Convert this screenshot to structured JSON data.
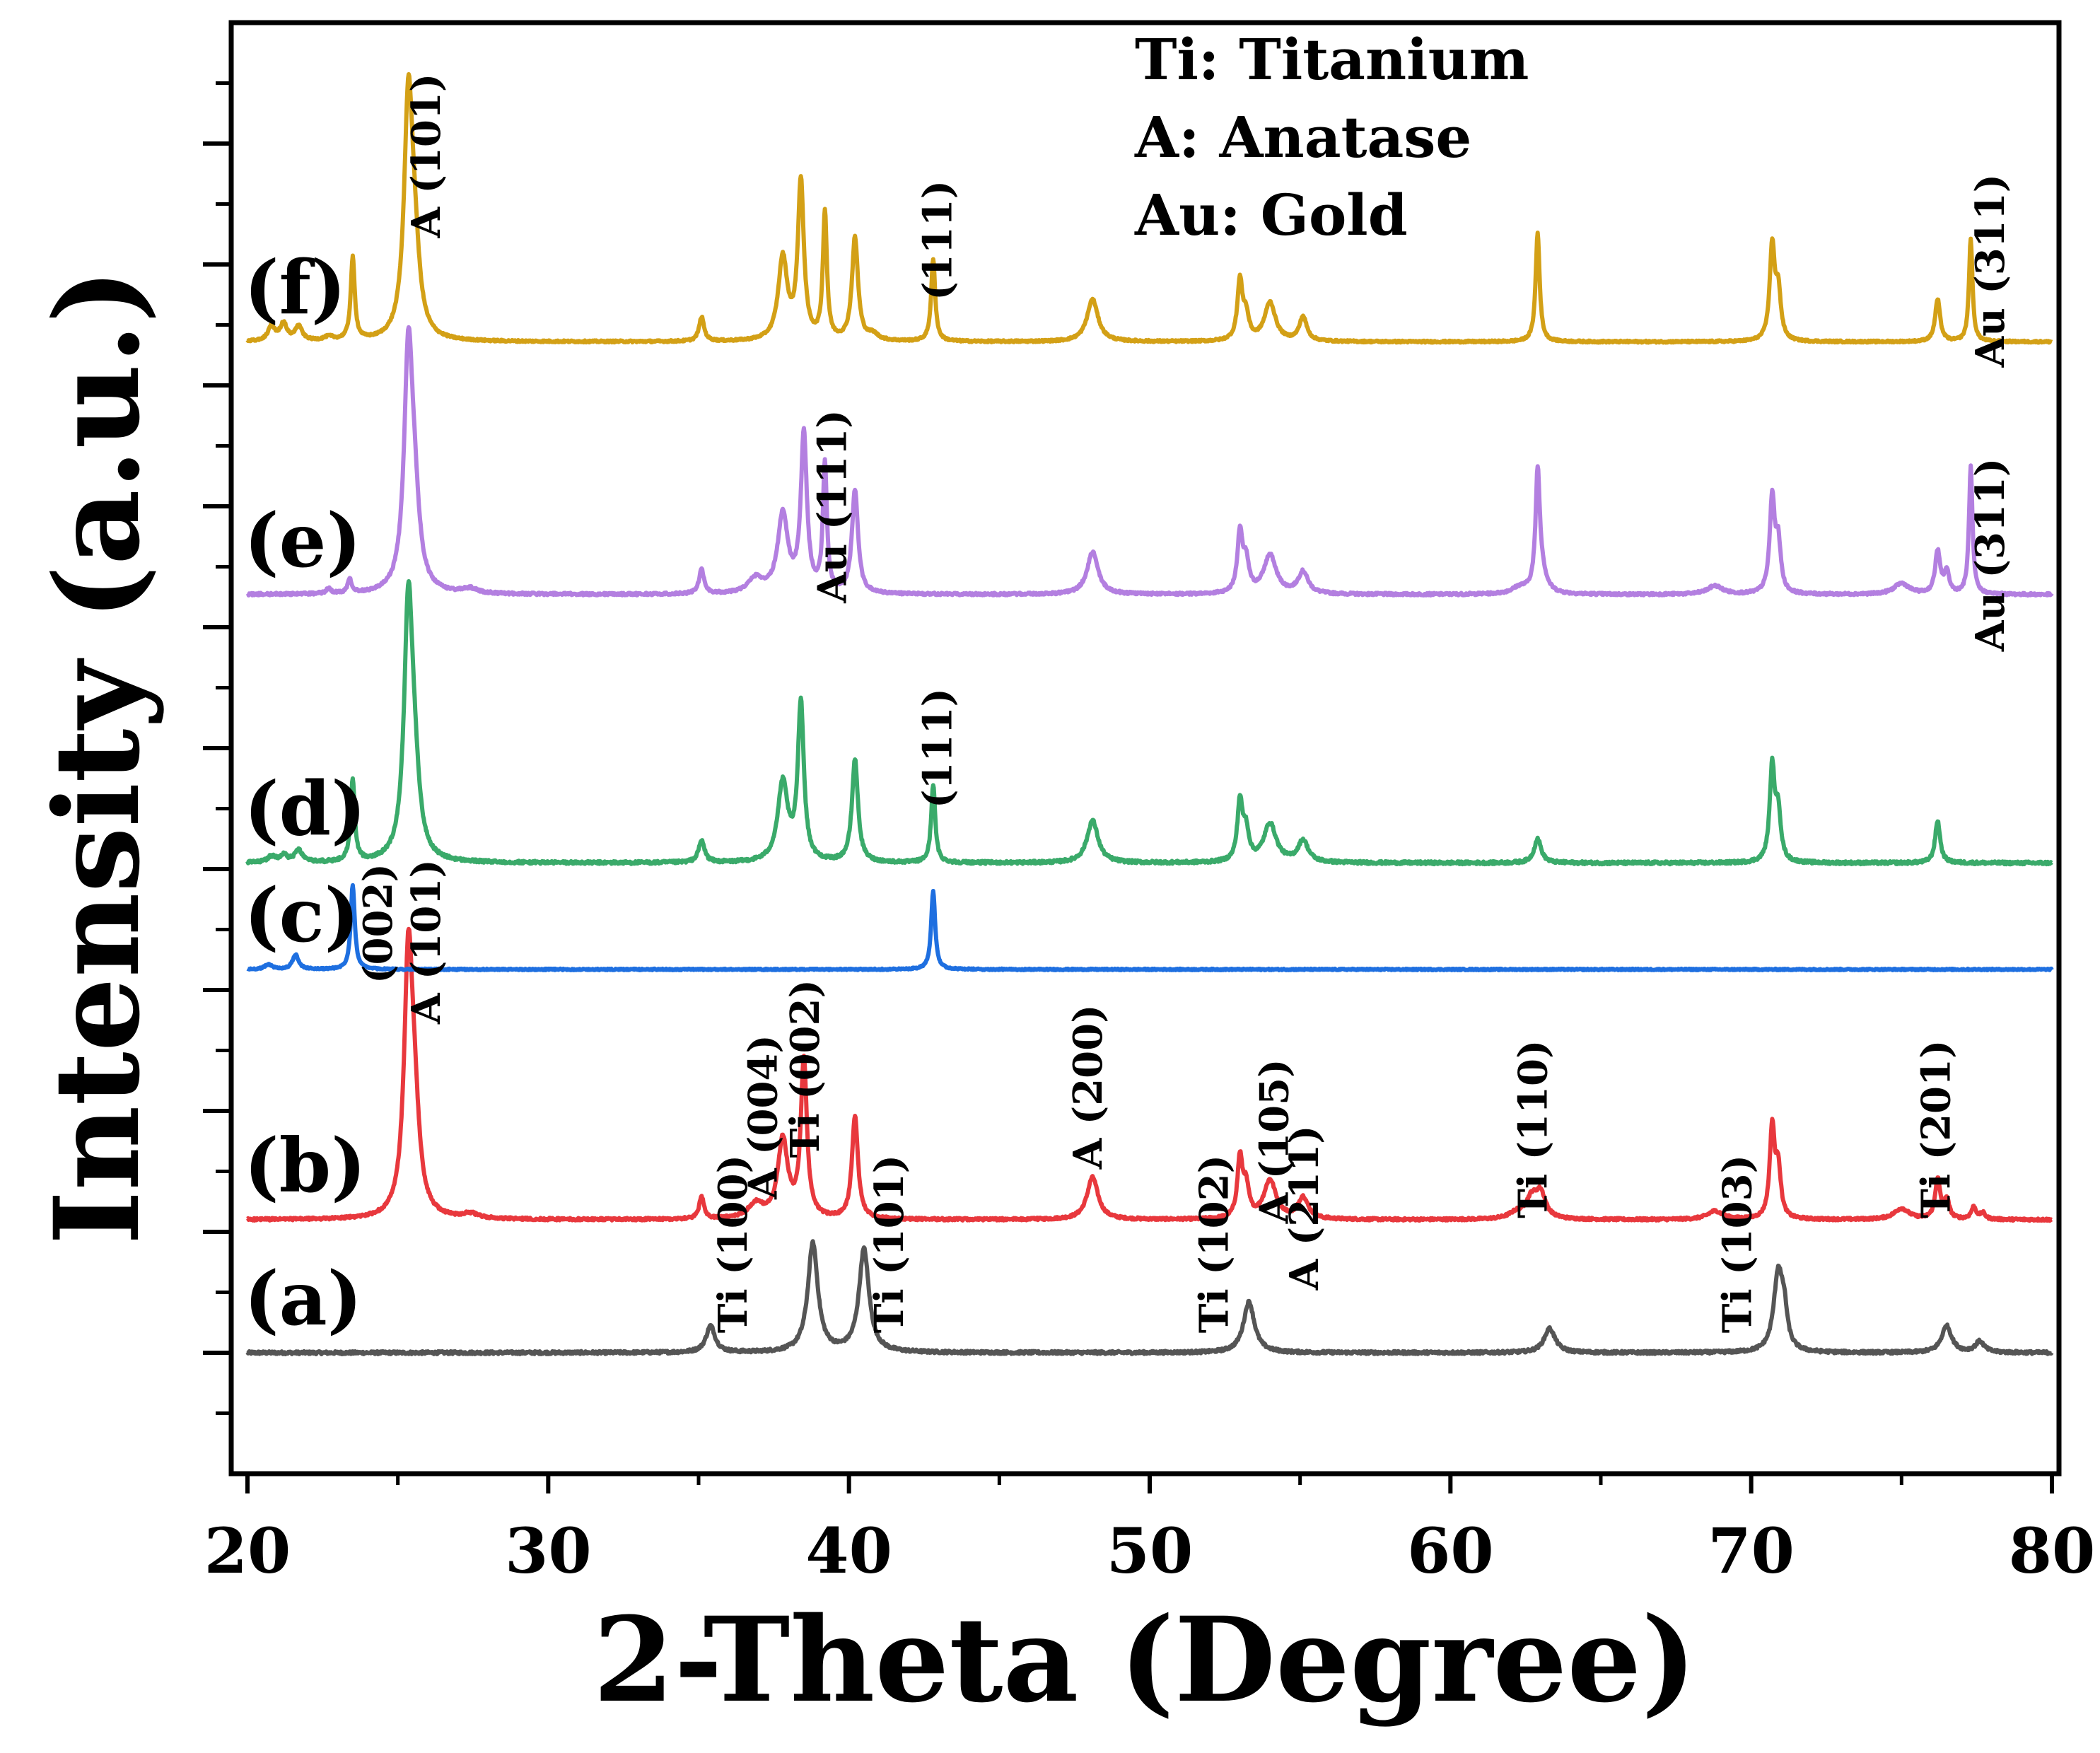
{
  "chart_data": {
    "type": "line",
    "title": "",
    "xlabel": "2-Theta (Degree)",
    "ylabel": "Intensity (a.u.)",
    "xlim": [
      20,
      80
    ],
    "xticks": [
      20,
      30,
      40,
      50,
      60,
      70,
      80
    ],
    "ylim": [
      0,
      12
    ],
    "y_ticks_unlabeled": true,
    "legend_text": [
      "Ti: Titanium",
      "A: Anatase",
      "Au: Gold"
    ],
    "series": [
      {
        "name": "(a)",
        "color": "#555555",
        "baseline": 1.0,
        "noise": 0.012,
        "peaks": [
          [
            35.4,
            0.22,
            0.18
          ],
          [
            38.8,
            0.9,
            0.2
          ],
          [
            40.5,
            0.85,
            0.2
          ],
          [
            53.3,
            0.42,
            0.22
          ],
          [
            63.3,
            0.2,
            0.22
          ],
          [
            70.9,
            0.65,
            0.18
          ],
          [
            71.1,
            0.25,
            0.12
          ],
          [
            76.5,
            0.22,
            0.2
          ],
          [
            77.6,
            0.09,
            0.18
          ]
        ],
        "annotations": [
          {
            "text": "Ti (100)",
            "x": 36.6,
            "y": 1.9
          },
          {
            "text": "Ti (101)",
            "x": 41.8,
            "y": 1.9
          },
          {
            "text": "Ti (102)",
            "x": 52.6,
            "y": 1.9
          },
          {
            "text": "Ti (103)",
            "x": 70.0,
            "y": 1.9
          }
        ]
      },
      {
        "name": "(b)",
        "color": "#e8383d",
        "baseline": 2.1,
        "noise": 0.01,
        "peaks": [
          [
            25.35,
            2.05,
            0.17
          ],
          [
            25.55,
            0.7,
            0.2
          ],
          [
            27.4,
            0.04,
            0.3
          ],
          [
            35.1,
            0.18,
            0.1
          ],
          [
            36.9,
            0.12,
            0.3
          ],
          [
            37.8,
            0.65,
            0.2
          ],
          [
            38.5,
            1.3,
            0.12
          ],
          [
            40.2,
            0.85,
            0.12
          ],
          [
            48.1,
            0.35,
            0.22
          ],
          [
            53.0,
            0.48,
            0.1
          ],
          [
            53.2,
            0.25,
            0.12
          ],
          [
            54.0,
            0.32,
            0.25
          ],
          [
            55.1,
            0.18,
            0.2
          ],
          [
            62.2,
            0.05,
            0.3
          ],
          [
            62.7,
            0.16,
            0.22
          ],
          [
            63.0,
            0.2,
            0.2
          ],
          [
            68.8,
            0.07,
            0.3
          ],
          [
            70.7,
            0.75,
            0.1
          ],
          [
            70.9,
            0.4,
            0.1
          ],
          [
            75.0,
            0.09,
            0.3
          ],
          [
            76.2,
            0.33,
            0.1
          ],
          [
            76.5,
            0.16,
            0.1
          ],
          [
            77.4,
            0.1,
            0.1
          ],
          [
            77.7,
            0.05,
            0.1
          ]
        ],
        "annotations": [
          {
            "text": "A (101)",
            "x": 26.4,
            "y": 4.4
          },
          {
            "text": "A (004)",
            "x": 37.6,
            "y": 2.95
          },
          {
            "text": "Ti (002)",
            "x": 39.0,
            "y": 3.35
          },
          {
            "text": "A (200)",
            "x": 48.4,
            "y": 3.2
          },
          {
            "text": "A (105)",
            "x": 54.6,
            "y": 2.75
          },
          {
            "text": "A (211)",
            "x": 55.6,
            "y": 2.2
          },
          {
            "text": "Ti (110)",
            "x": 63.2,
            "y": 2.85
          },
          {
            "text": "Ti (201)",
            "x": 76.6,
            "y": 2.85
          }
        ]
      },
      {
        "name": "(c)",
        "color": "#1e6fe0",
        "baseline": 4.17,
        "noise": 0.006,
        "peaks": [
          [
            20.7,
            0.04,
            0.15
          ],
          [
            21.6,
            0.12,
            0.12
          ],
          [
            23.5,
            0.7,
            0.08
          ],
          [
            42.8,
            0.65,
            0.08
          ]
        ],
        "annotations": [
          {
            "text": "(002)",
            "x": 24.8,
            "y": 4.55
          }
        ]
      },
      {
        "name": "(d)",
        "color": "#3aaa6a",
        "baseline": 5.05,
        "noise": 0.012,
        "peaks": [
          [
            20.8,
            0.05,
            0.15
          ],
          [
            21.2,
            0.06,
            0.15
          ],
          [
            21.7,
            0.1,
            0.15
          ],
          [
            23.5,
            0.68,
            0.08
          ],
          [
            25.35,
            2.05,
            0.17
          ],
          [
            25.55,
            0.55,
            0.2
          ],
          [
            35.1,
            0.18,
            0.12
          ],
          [
            37.8,
            0.65,
            0.2
          ],
          [
            38.4,
            1.3,
            0.12
          ],
          [
            40.2,
            0.85,
            0.12
          ],
          [
            42.8,
            0.65,
            0.08
          ],
          [
            48.1,
            0.35,
            0.22
          ],
          [
            53.0,
            0.48,
            0.1
          ],
          [
            53.2,
            0.25,
            0.12
          ],
          [
            54.0,
            0.32,
            0.25
          ],
          [
            55.1,
            0.18,
            0.2
          ],
          [
            62.9,
            0.2,
            0.14
          ],
          [
            70.7,
            0.78,
            0.1
          ],
          [
            70.9,
            0.4,
            0.1
          ],
          [
            76.2,
            0.35,
            0.1
          ]
        ],
        "annotations": [
          {
            "text": "(111)",
            "x": 43.4,
            "y": 6.0
          }
        ]
      },
      {
        "name": "(e)",
        "color": "#b37fe0",
        "baseline": 7.27,
        "noise": 0.01,
        "peaks": [
          [
            22.7,
            0.04,
            0.1
          ],
          [
            23.4,
            0.12,
            0.08
          ],
          [
            25.35,
            1.9,
            0.17
          ],
          [
            25.55,
            0.6,
            0.2
          ],
          [
            27.4,
            0.04,
            0.3
          ],
          [
            35.1,
            0.2,
            0.1
          ],
          [
            36.9,
            0.12,
            0.3
          ],
          [
            37.8,
            0.65,
            0.2
          ],
          [
            38.5,
            1.3,
            0.12
          ],
          [
            39.2,
            1.05,
            0.08
          ],
          [
            40.2,
            0.85,
            0.12
          ],
          [
            48.1,
            0.35,
            0.22
          ],
          [
            53.0,
            0.48,
            0.1
          ],
          [
            53.2,
            0.25,
            0.12
          ],
          [
            54.0,
            0.32,
            0.25
          ],
          [
            55.1,
            0.18,
            0.2
          ],
          [
            62.3,
            0.05,
            0.3
          ],
          [
            62.9,
            0.9,
            0.08
          ],
          [
            63.0,
            0.2,
            0.2
          ],
          [
            68.8,
            0.07,
            0.3
          ],
          [
            70.7,
            0.78,
            0.1
          ],
          [
            70.9,
            0.4,
            0.1
          ],
          [
            75.0,
            0.09,
            0.3
          ],
          [
            76.2,
            0.35,
            0.1
          ],
          [
            76.5,
            0.18,
            0.1
          ],
          [
            77.3,
            1.05,
            0.07
          ]
        ],
        "annotations": [
          {
            "text": "Au (111)",
            "x": 39.9,
            "y": 8.0
          },
          {
            "text": "Au (311)",
            "x": 78.4,
            "y": 7.6
          }
        ]
      },
      {
        "name": "(f)",
        "color": "#d3a016",
        "baseline": 9.36,
        "noise": 0.008,
        "peaks": [
          [
            20.8,
            0.12,
            0.14
          ],
          [
            21.2,
            0.14,
            0.14
          ],
          [
            21.7,
            0.12,
            0.14
          ],
          [
            22.7,
            0.03,
            0.2
          ],
          [
            23.5,
            0.68,
            0.08
          ],
          [
            25.35,
            1.9,
            0.17
          ],
          [
            25.55,
            0.6,
            0.2
          ],
          [
            35.1,
            0.2,
            0.1
          ],
          [
            37.8,
            0.68,
            0.18
          ],
          [
            38.4,
            1.3,
            0.12
          ],
          [
            39.2,
            1.05,
            0.08
          ],
          [
            40.2,
            0.85,
            0.12
          ],
          [
            40.8,
            0.05,
            0.2
          ],
          [
            42.8,
            0.68,
            0.08
          ],
          [
            48.1,
            0.35,
            0.22
          ],
          [
            53.0,
            0.48,
            0.1
          ],
          [
            53.2,
            0.2,
            0.12
          ],
          [
            54.0,
            0.32,
            0.22
          ],
          [
            55.1,
            0.2,
            0.15
          ],
          [
            62.9,
            0.9,
            0.08
          ],
          [
            70.7,
            0.78,
            0.1
          ],
          [
            70.9,
            0.4,
            0.1
          ],
          [
            76.2,
            0.35,
            0.1
          ],
          [
            77.3,
            0.85,
            0.07
          ]
        ],
        "annotations": [
          {
            "text": "A (101)",
            "x": 26.4,
            "y": 10.9
          },
          {
            "text": "(111)",
            "x": 43.4,
            "y": 10.2
          },
          {
            "text": "Au (311)",
            "x": 78.4,
            "y": 9.95
          }
        ]
      }
    ]
  }
}
